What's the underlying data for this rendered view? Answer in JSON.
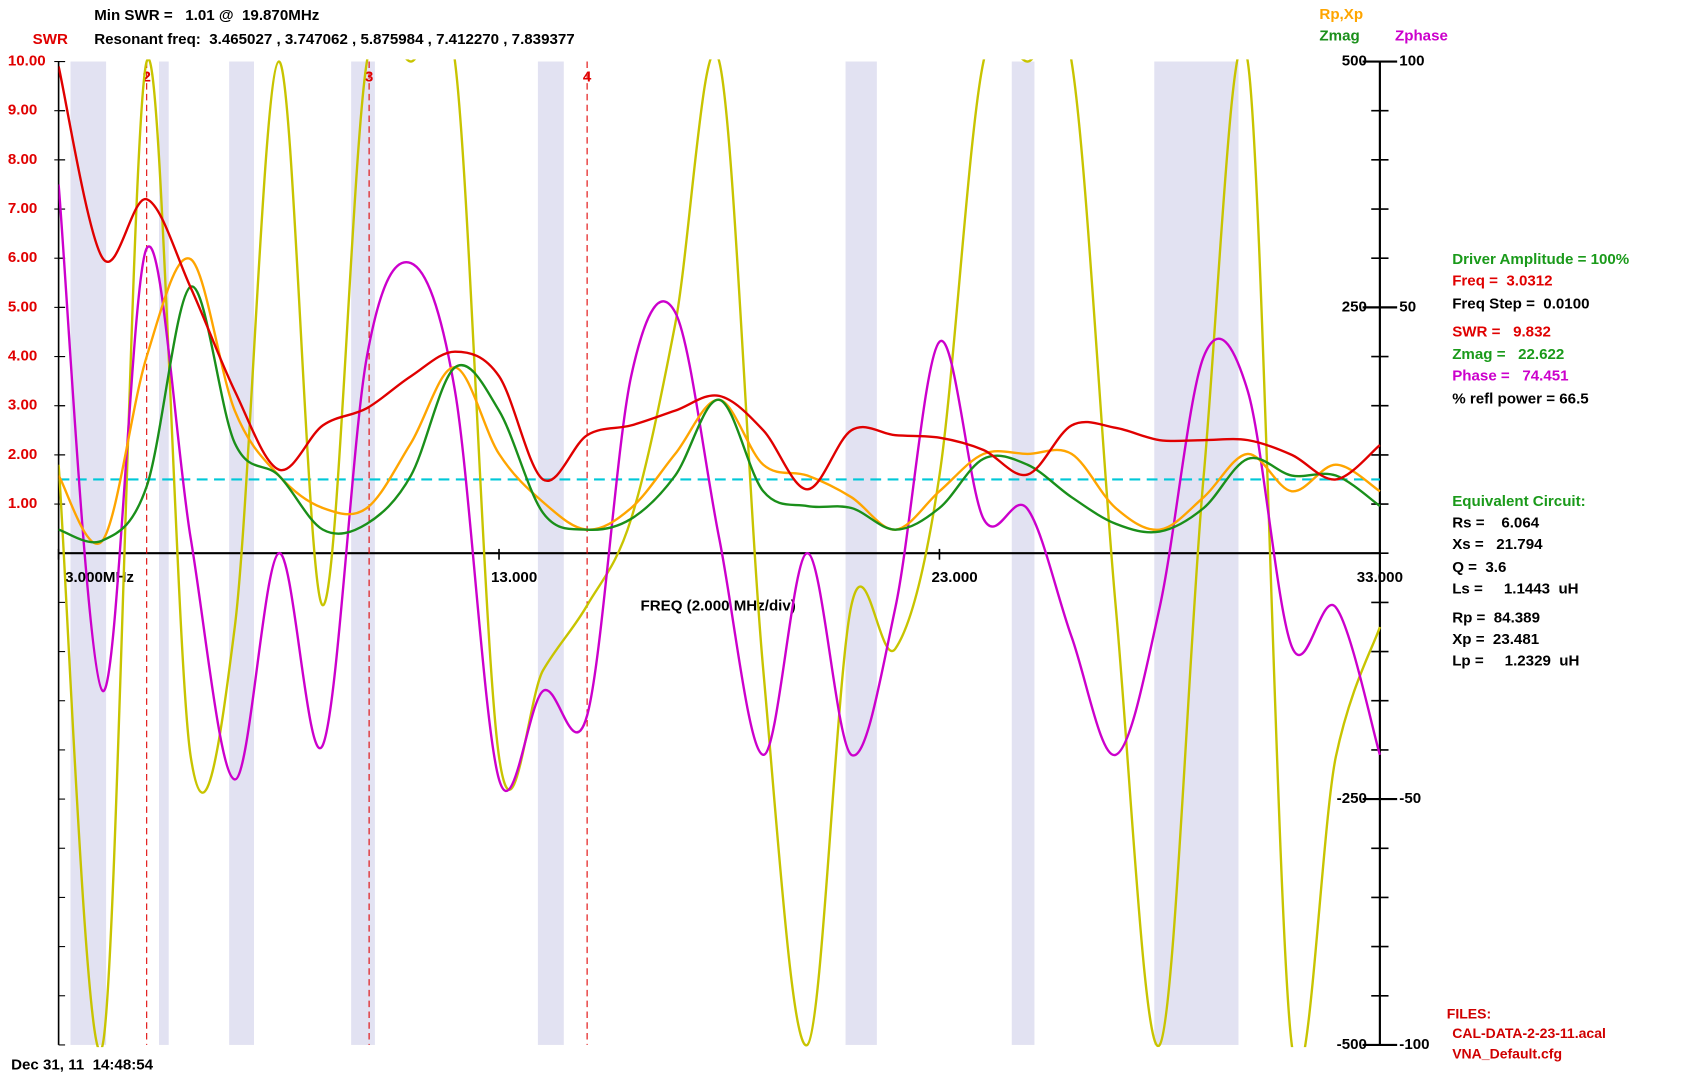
{
  "chart_data": {
    "type": "line",
    "header": [
      "Min SWR =   1.01 @  19.870MHz",
      "Resonant freq:  3.465027 , 3.747062 , 5.875984 , 7.412270 , 7.839377"
    ],
    "xlabel": "FREQ (2.000 MHz/div)",
    "x": [
      3,
      4,
      5,
      6,
      7,
      8,
      9,
      10,
      11,
      12,
      13,
      14,
      15,
      16,
      17,
      18,
      19,
      20,
      21,
      22,
      23,
      24,
      25,
      26,
      27,
      28,
      29,
      30,
      31,
      32,
      33
    ],
    "xlim": [
      3,
      33
    ],
    "xticks": [
      {
        "value": 3,
        "label": "3.000MHz"
      },
      {
        "value": 13,
        "label": "13.000"
      },
      {
        "value": 23,
        "label": "23.000"
      },
      {
        "value": 33,
        "label": "33.000"
      }
    ],
    "ylim": [
      -10,
      10
    ],
    "yticks": [
      {
        "value": 1,
        "label": "1.00"
      },
      {
        "value": 2,
        "label": "2.00"
      },
      {
        "value": 3,
        "label": "3.00"
      },
      {
        "value": 4,
        "label": "4.00"
      },
      {
        "value": 5,
        "label": "5.00"
      },
      {
        "value": 6,
        "label": "6.00"
      },
      {
        "value": 7,
        "label": "7.00"
      },
      {
        "value": 8,
        "label": "8.00"
      },
      {
        "value": 9,
        "label": "9.00"
      },
      {
        "value": 10,
        "label": "10.00"
      }
    ],
    "y2lim": [
      -100,
      100
    ],
    "y2ticks": [
      100,
      50,
      -50,
      -100
    ],
    "y3lim": [
      -500,
      500
    ],
    "y3ticks": [
      500,
      250,
      -250,
      -500
    ],
    "series": [
      {
        "name": "SWR",
        "color": "#e00000",
        "axis": "y",
        "values": [
          9.9,
          6.0,
          7.2,
          5.4,
          3.3,
          1.7,
          2.6,
          2.95,
          3.6,
          4.1,
          3.6,
          1.5,
          2.4,
          2.6,
          2.9,
          3.2,
          2.5,
          1.3,
          2.5,
          2.4,
          2.35,
          2.1,
          1.6,
          2.6,
          2.55,
          2.3,
          2.3,
          2.3,
          2.0,
          1.5,
          2.2
        ]
      },
      {
        "name": "Zmag",
        "color": "#1a8f1a",
        "axis": "y3",
        "values": [
          24,
          13,
          68,
          271,
          112,
          79,
          24,
          30,
          79,
          189,
          145,
          41,
          24,
          35,
          79,
          156,
          63,
          48,
          46,
          24,
          46,
          96,
          90,
          57,
          30,
          22,
          46,
          96,
          79,
          79,
          48
        ]
      },
      {
        "name": "Rp,Xp",
        "color": "#ffa500",
        "axis": "y3",
        "values": [
          79,
          13,
          200,
          299,
          145,
          79,
          46,
          46,
          112,
          189,
          101,
          52,
          24,
          46,
          101,
          156,
          90,
          79,
          57,
          24,
          63,
          101,
          101,
          101,
          46,
          24,
          57,
          101,
          63,
          90,
          63
        ]
      },
      {
        "color": "#c8c400",
        "axis": "y3",
        "values": [
          90,
          -500,
          500,
          -207,
          -75,
          500,
          -53,
          500,
          500,
          500,
          -207,
          -119,
          -53,
          35,
          233,
          500,
          -119,
          -500,
          -53,
          -97,
          79,
          500,
          500,
          500,
          -53,
          -500,
          79,
          500,
          -500,
          -207,
          -75
        ]
      },
      {
        "name": "Zphase",
        "color": "#cc00cc",
        "axis": "y2",
        "values": [
          75,
          -28,
          62,
          3,
          -46,
          0,
          -39,
          40,
          59,
          33,
          -46,
          -28,
          -33,
          36,
          49,
          3,
          -41,
          0,
          -41,
          -11,
          43,
          7,
          9,
          -17,
          -41,
          -11,
          40,
          33,
          -19,
          -11,
          -41
        ]
      }
    ],
    "reference_line": {
      "value": 1.5,
      "color": "#00c8d8"
    },
    "markers": [
      {
        "label": "2",
        "x": 5.0
      },
      {
        "label": "3",
        "x": 10.05
      },
      {
        "label": "4",
        "x": 15.0
      }
    ],
    "panel": [
      {
        "text": "Driver Amplitude = 100%",
        "color": "#1a9a1a"
      },
      {
        "text": "Freq =  3.0312",
        "color": "#e00000"
      },
      {
        "text": "Freq Step =  0.0100",
        "color": "#000000"
      },
      {
        "text": "SWR =   9.832",
        "color": "#e00000"
      },
      {
        "text": "Zmag =   22.622",
        "color": "#1a9a1a"
      },
      {
        "text": "Phase =   74.451",
        "color": "#cc00cc"
      },
      {
        "text": "% refl power = 66.5",
        "color": "#000000"
      },
      {
        "text": "Equivalent Circuit:",
        "color": "#1a9a1a"
      },
      {
        "text": "Rs =    6.064",
        "color": "#000000"
      },
      {
        "text": "Xs =   21.794",
        "color": "#000000"
      },
      {
        "text": "Q =  3.6",
        "color": "#000000"
      },
      {
        "text": "Ls =     1.1443  uH",
        "color": "#000000"
      },
      {
        "text": "Rp =  84.389",
        "color": "#000000"
      },
      {
        "text": "Xp =  23.481",
        "color": "#000000"
      },
      {
        "text": "Lp =     1.2329  uH",
        "color": "#000000"
      }
    ],
    "files": [
      "FILES:",
      "CAL-DATA-2-23-11.acal",
      "VNA_Default.cfg"
    ],
    "timestamp": "Dec 31, 11  14:48:54"
  }
}
